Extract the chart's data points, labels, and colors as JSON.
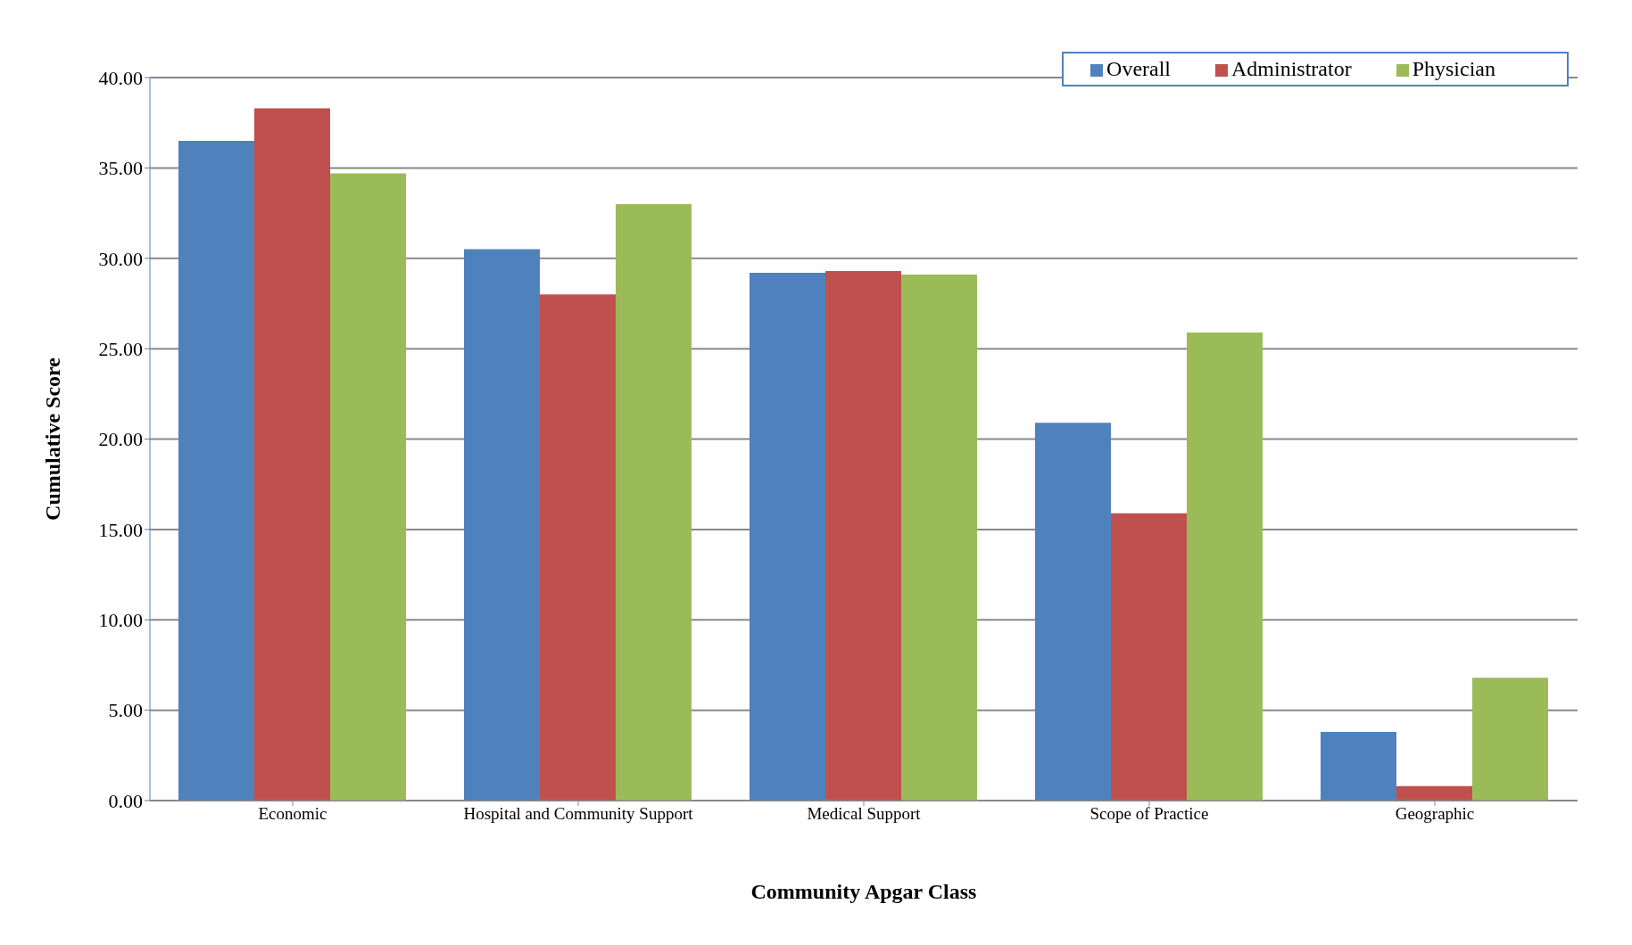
{
  "chart_data": {
    "type": "bar",
    "xlabel": "Community Apgar Class",
    "ylabel": "Cumulative Score",
    "categories": [
      "Economic",
      "Hospital and Community Support",
      "Medical Support",
      "Scope of Practice",
      "Geographic"
    ],
    "series": [
      {
        "name": "Overall",
        "color": "#4f81bd",
        "values": [
          36.5,
          30.5,
          29.2,
          20.9,
          3.8
        ]
      },
      {
        "name": "Administrator",
        "color": "#c0504d",
        "values": [
          38.3,
          28.0,
          29.3,
          15.9,
          0.8
        ]
      },
      {
        "name": "Physician",
        "color": "#9bbb59",
        "values": [
          34.7,
          33.0,
          29.1,
          25.9,
          6.8
        ]
      }
    ],
    "ylim": [
      0,
      40
    ],
    "yticks": [
      {
        "value": 0,
        "label": "0.00"
      },
      {
        "value": 5,
        "label": "5.00"
      },
      {
        "value": 10,
        "label": "10.00"
      },
      {
        "value": 15,
        "label": "15.00"
      },
      {
        "value": 20,
        "label": "20.00"
      },
      {
        "value": 25,
        "label": "25.00"
      },
      {
        "value": 30,
        "label": "30.00"
      },
      {
        "value": 35,
        "label": "35.00"
      },
      {
        "value": 40,
        "label": "40.00"
      }
    ],
    "grid": "y",
    "legend": "top right"
  }
}
